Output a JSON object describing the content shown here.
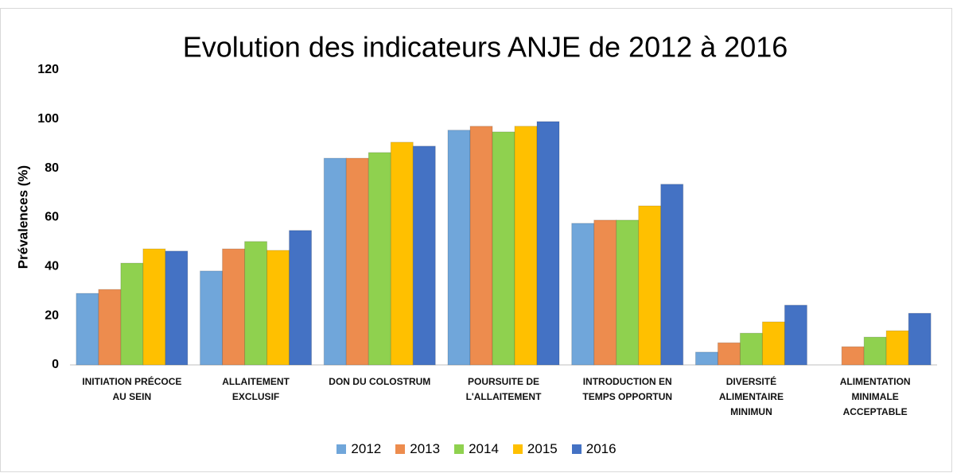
{
  "chart_data": {
    "type": "bar",
    "title": "Evolution des indicateurs ANJE de 2012 à 2016",
    "y_label": "Prévalences (%)",
    "categories": [
      "INITIATION PRÉCOCE\nAU SEIN",
      "ALLAITEMENT\nEXCLUSIF",
      "DON DU COLOSTRUM",
      "POURSUITE DE\nL'ALLAITEMENT",
      "INTRODUCTION EN\nTEMPS OPPORTUN",
      "DIVERSITÉ\nALIMENTAIRE\nMINIMUN",
      "ALIMENTATION\nMINIMALE\nACCEPTABLE"
    ],
    "series": [
      {
        "name": "2012",
        "color": "#70a6da",
        "values": [
          29.1,
          38.2,
          84.1,
          95.5,
          57.6,
          5.2,
          null
        ]
      },
      {
        "name": "2013",
        "color": "#ed8c4e",
        "values": [
          30.7,
          47.2,
          84.1,
          97.1,
          58.9,
          9,
          7.4
        ]
      },
      {
        "name": "2014",
        "color": "#8fd14f",
        "values": [
          41.4,
          50.2,
          86.4,
          94.8,
          58.9,
          12.9,
          11.3
        ]
      },
      {
        "name": "2015",
        "color": "#ffc000",
        "values": [
          47.2,
          46.6,
          90.6,
          97.1,
          64.7,
          17.5,
          13.9
        ]
      },
      {
        "name": "2016",
        "color": "#4472c4",
        "values": [
          46.3,
          54.7,
          89,
          99,
          73.5,
          24.3,
          21
        ]
      }
    ],
    "ylim": [
      0,
      120
    ],
    "yticks": [
      0,
      20,
      40,
      60,
      80,
      100,
      120
    ],
    "grid": false,
    "legend": "bottom"
  }
}
